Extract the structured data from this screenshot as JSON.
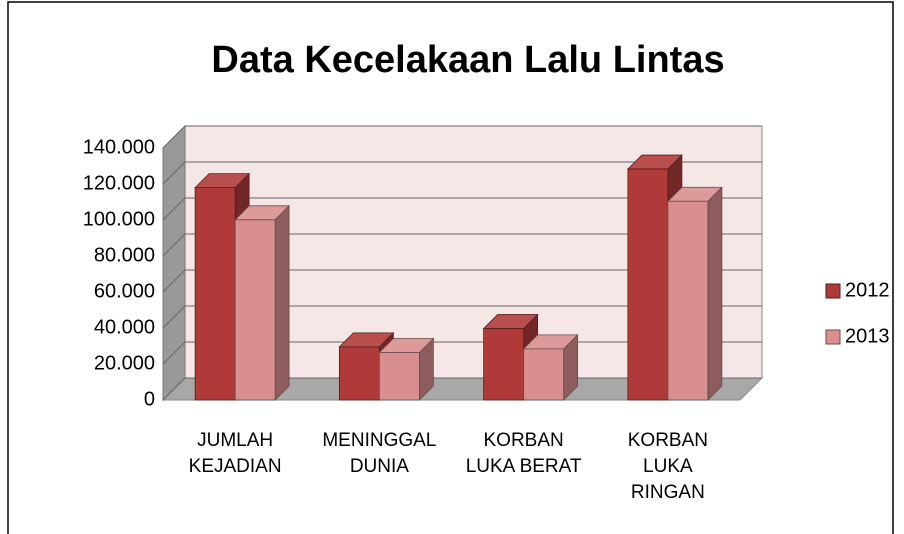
{
  "chart_data": {
    "type": "bar3d",
    "title": "Data Kecelakaan Lalu Lintas",
    "categories": [
      [
        "JUMLAH",
        "KEJADIAN"
      ],
      [
        "MENINGGAL",
        "DUNIA"
      ],
      [
        "KORBAN",
        "LUKA BERAT"
      ],
      [
        "KORBAN",
        "LUKA",
        "RINGAN"
      ]
    ],
    "series": [
      {
        "name": "2012",
        "color": "#b03a3a",
        "values": [
          118000,
          29500,
          39700,
          128300
        ]
      },
      {
        "name": "2013",
        "color": "#d98f8f",
        "values": [
          100100,
          26400,
          28400,
          110400
        ]
      }
    ],
    "ylim": [
      0,
      140000
    ],
    "yticks": [
      0,
      {
        "value": 20000,
        "label": "20.000"
      },
      {
        "value": 40000,
        "label": "40.000"
      },
      {
        "value": 60000,
        "label": "60.000"
      },
      {
        "value": 80000,
        "label": "80.000"
      },
      {
        "value": 100000,
        "label": "100.000"
      },
      {
        "value": 120000,
        "label": "120.000"
      },
      {
        "value": 140000,
        "label": "140.000"
      }
    ],
    "grid": true,
    "legend": "right"
  }
}
